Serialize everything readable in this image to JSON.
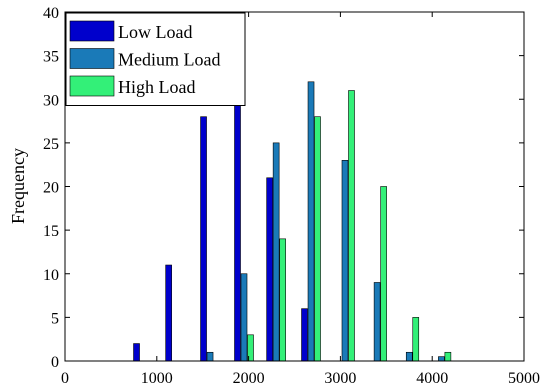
{
  "chart_data": {
    "type": "bar",
    "title": "",
    "xlabel": "",
    "ylabel": "Frequency",
    "xlim": [
      0,
      5000
    ],
    "ylim": [
      0,
      40
    ],
    "xticks": [
      0,
      1000,
      2000,
      3000,
      4000,
      5000
    ],
    "yticks": [
      0,
      5,
      10,
      15,
      20,
      25,
      30,
      35,
      40
    ],
    "grid": false,
    "legend_position": "top-left",
    "bar_groups": [
      850,
      1200,
      1580,
      1950,
      2300,
      2680,
      3050,
      3400,
      3750,
      4100
    ],
    "series": [
      {
        "name": "Low Load",
        "color": "#0000cc",
        "values": [
          2,
          11,
          28,
          30,
          21,
          6,
          0,
          0,
          0,
          0
        ]
      },
      {
        "name": "Medium Load",
        "color": "#1a7ab8",
        "values": [
          0,
          0,
          1,
          10,
          25,
          32,
          23,
          9,
          1,
          0.5
        ]
      },
      {
        "name": "High Load",
        "color": "#33f078",
        "values": [
          0,
          0,
          0,
          3,
          14,
          28,
          31,
          20,
          5,
          1
        ]
      }
    ]
  }
}
